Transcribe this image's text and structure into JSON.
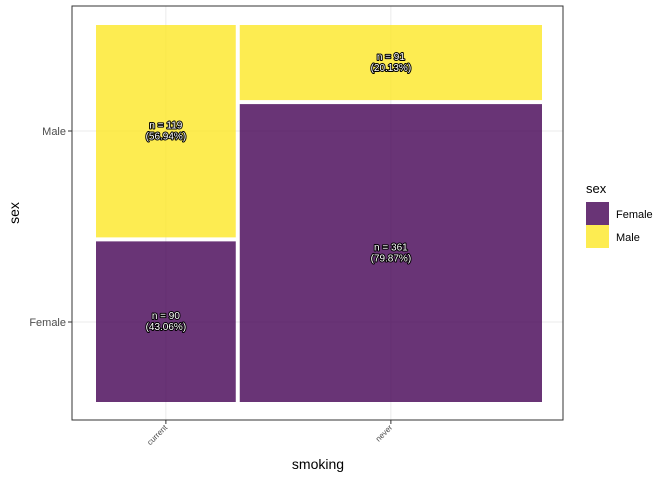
{
  "chart_data": {
    "type": "mosaic",
    "xlabel": "smoking",
    "ylabel": "sex",
    "categories": [
      "current",
      "never"
    ],
    "category_totals": [
      209,
      452
    ],
    "y_levels": [
      "Male",
      "Female"
    ],
    "series": [
      {
        "name": "Female",
        "color": "#440154",
        "values": [
          90,
          361
        ],
        "labels": [
          "n = 90\n(43.06%)",
          "n = 361\n(79.87%)"
        ]
      },
      {
        "name": "Male",
        "color": "#FDE725",
        "values": [
          119,
          91
        ],
        "labels": [
          "n = 119\n(56.94%)",
          "n = 91\n(20.13%)"
        ]
      }
    ],
    "legend": {
      "title": "sex",
      "position": "right",
      "entries": [
        "Female",
        "Male"
      ]
    },
    "grid": true
  }
}
